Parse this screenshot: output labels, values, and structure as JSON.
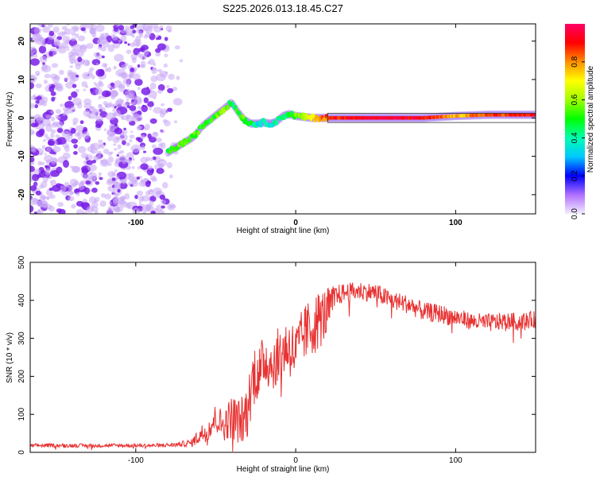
{
  "title": "S225.2026.013.18.45.C27",
  "colors": {
    "snr_line": "#e83232",
    "axis": "#000000",
    "speckle": "#7a20e8",
    "speckle_light": "#c9a8f5"
  },
  "chart_data": [
    {
      "type": "heatmap",
      "title": "S225.2026.013.18.45.C27",
      "xlabel": "Height of straight line (km)",
      "ylabel": "Frequency (Hz)",
      "xlim": [
        -166,
        150
      ],
      "ylim": [
        -25,
        24.5
      ],
      "xticks": [
        -100,
        0,
        100
      ],
      "xtick_labels": [
        "-100",
        "0",
        "100"
      ],
      "yticks": [
        -20,
        -10,
        0,
        10,
        20
      ],
      "ytick_labels": [
        "-20",
        "-10",
        "0",
        "10",
        "20"
      ],
      "noise_region_x": [
        -166,
        -70
      ],
      "ridge": {
        "x": [
          -80,
          -72,
          -64,
          -58,
          -52,
          -46,
          -40,
          -36,
          -32,
          -28,
          -24,
          -20,
          -16,
          -12,
          -8,
          -4,
          0,
          10,
          20,
          40,
          60,
          80,
          100,
          120,
          150
        ],
        "y": [
          -9,
          -7,
          -5,
          -2,
          0,
          2,
          4,
          1.5,
          -0.5,
          -1.5,
          -1.5,
          -1.2,
          -1.5,
          -1,
          0.5,
          1,
          0.5,
          0,
          0,
          0,
          0,
          0,
          0.5,
          0.8,
          0.8
        ],
        "amplitude": [
          0.5,
          0.55,
          0.55,
          0.5,
          0.5,
          0.6,
          0.45,
          0.5,
          0.55,
          0.45,
          0.35,
          0.4,
          0.35,
          0.45,
          0.4,
          0.45,
          0.55,
          0.7,
          0.85,
          0.95,
          0.95,
          0.9,
          0.75,
          0.85,
          0.9
        ]
      },
      "colorbar": {
        "label": "Normalized spectral amplitude",
        "range": [
          0,
          1
        ],
        "ticks": [
          0.0,
          0.2,
          0.4,
          0.6,
          0.8
        ],
        "tick_labels": [
          "0.0",
          "0.2",
          "0.4",
          "0.6",
          "0.8"
        ]
      }
    },
    {
      "type": "line",
      "xlabel": "Height of straight line (km)",
      "ylabel": "SNR (10 * v/v)",
      "xlim": [
        -166,
        150
      ],
      "ylim": [
        0,
        500
      ],
      "xticks": [
        -100,
        0,
        100
      ],
      "xtick_labels": [
        "-100",
        "0",
        "100"
      ],
      "yticks": [
        0,
        100,
        200,
        300,
        400,
        500
      ],
      "ytick_labels": [
        "0",
        "100",
        "200",
        "300",
        "400",
        "500"
      ],
      "series": [
        {
          "name": "SNR",
          "x": [
            -166,
            -150,
            -130,
            -110,
            -90,
            -75,
            -65,
            -60,
            -55,
            -50,
            -45,
            -40,
            -35,
            -30,
            -28,
            -25,
            -22,
            -20,
            -15,
            -10,
            -5,
            0,
            5,
            10,
            15,
            20,
            25,
            30,
            40,
            50,
            60,
            70,
            80,
            90,
            100,
            110,
            120,
            130,
            140,
            150
          ],
          "mean": [
            18,
            18,
            18,
            18,
            18,
            20,
            25,
            45,
            60,
            90,
            70,
            95,
            80,
            110,
            170,
            220,
            200,
            250,
            230,
            260,
            280,
            260,
            310,
            330,
            350,
            370,
            410,
            420,
            425,
            420,
            400,
            390,
            370,
            365,
            355,
            345,
            340,
            345,
            345,
            350
          ],
          "amplitude": [
            10,
            10,
            10,
            10,
            10,
            12,
            20,
            50,
            60,
            80,
            80,
            120,
            120,
            150,
            160,
            170,
            160,
            150,
            140,
            150,
            160,
            160,
            150,
            160,
            160,
            130,
            60,
            50,
            50,
            50,
            50,
            50,
            50,
            50,
            50,
            45,
            50,
            45,
            45,
            45
          ]
        }
      ]
    }
  ]
}
